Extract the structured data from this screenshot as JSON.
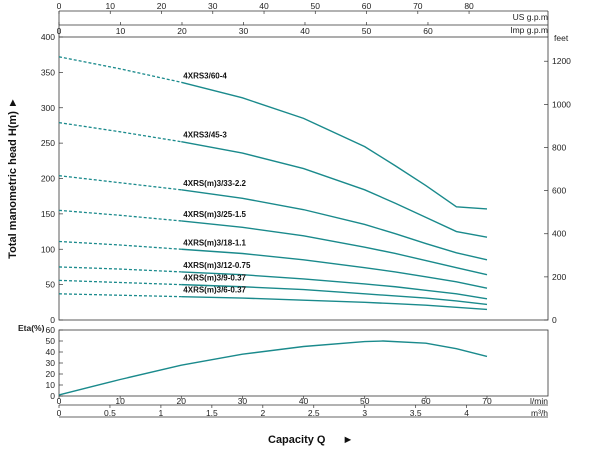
{
  "chart_data": [
    {
      "type": "line",
      "subtitle_panel": "head",
      "ylabel": "Total manometric head H(m)",
      "ylabel_arrow": "►",
      "ylim": [
        0,
        400
      ],
      "xlim": [
        0,
        70
      ],
      "y_ticks": [
        "0",
        "50",
        "100",
        "150",
        "200",
        "250",
        "300",
        "350",
        "400"
      ],
      "y2_label": "feet",
      "y2_ticks": [
        "0",
        "200",
        "400",
        "600",
        "800",
        "1000",
        "1200"
      ],
      "x_top1_label": "US g.p.m",
      "x_top1_ticks": [
        "0",
        "10",
        "20",
        "30",
        "40",
        "50",
        "60",
        "70",
        "80"
      ],
      "x_top2_label": "Imp g.p.m",
      "x_top2_ticks": [
        "0",
        "10",
        "20",
        "30",
        "40",
        "50",
        "60"
      ],
      "grid": false,
      "series": [
        {
          "name": "4XRS3/60-4",
          "x": [
            0,
            10,
            20,
            30,
            40,
            50,
            55,
            60,
            65,
            70
          ],
          "y": [
            372,
            355,
            336,
            314,
            285,
            245,
            218,
            190,
            160,
            157
          ]
        },
        {
          "name": "4XRS3/45-3",
          "x": [
            0,
            10,
            20,
            30,
            40,
            50,
            55,
            60,
            65,
            70
          ],
          "y": [
            279,
            266,
            252,
            236,
            214,
            184,
            165,
            145,
            125,
            117
          ]
        },
        {
          "name": "4XRS(m)3/33-2.2",
          "x": [
            0,
            10,
            20,
            30,
            40,
            50,
            55,
            60,
            65,
            70
          ],
          "y": [
            204,
            194,
            184,
            172,
            156,
            135,
            122,
            108,
            95,
            85
          ]
        },
        {
          "name": "4XRS(m)3/25-1.5",
          "x": [
            0,
            10,
            20,
            30,
            40,
            50,
            55,
            60,
            65,
            70
          ],
          "y": [
            155,
            148,
            140,
            131,
            119,
            103,
            94,
            84,
            74,
            64
          ]
        },
        {
          "name": "4XRS(m)3/18-1.1",
          "x": [
            0,
            10,
            20,
            30,
            40,
            50,
            55,
            60,
            65,
            70
          ],
          "y": [
            111,
            106,
            100,
            94,
            85,
            74,
            68,
            61,
            54,
            45
          ]
        },
        {
          "name": "4XRS(m)3/12-0.75",
          "x": [
            0,
            10,
            20,
            30,
            40,
            50,
            55,
            60,
            65,
            70
          ],
          "y": [
            75,
            72,
            68,
            64,
            58,
            51,
            47,
            42,
            37,
            30
          ]
        },
        {
          "name": "4XRS(m)3/9-0.37",
          "x": [
            0,
            10,
            20,
            30,
            40,
            50,
            55,
            60,
            65,
            70
          ],
          "y": [
            56,
            53,
            50,
            47,
            43,
            37,
            34,
            31,
            27,
            22
          ]
        },
        {
          "name": "4XRS(m)3/6-0.37",
          "x": [
            0,
            10,
            20,
            30,
            40,
            50,
            55,
            60,
            65,
            70
          ],
          "y": [
            37,
            35,
            33,
            31,
            28,
            25,
            23,
            21,
            18,
            15
          ]
        }
      ]
    },
    {
      "type": "line",
      "subtitle_panel": "efficiency",
      "ylabel": "Eta(%)",
      "ylim": [
        0,
        60
      ],
      "xlim": [
        0,
        70
      ],
      "y_ticks": [
        "0",
        "10",
        "20",
        "30",
        "40",
        "50",
        "60"
      ],
      "x_ticks": [
        "0",
        "10",
        "20",
        "30",
        "40",
        "50",
        "60",
        "70"
      ],
      "x_label": "l/min",
      "x2_ticks": [
        "0",
        "0.5",
        "1",
        "1.5",
        "2",
        "2.5",
        "3",
        "3.5",
        "4"
      ],
      "x2_label": "m³/h",
      "grid": false,
      "series": [
        {
          "name": "",
          "x": [
            0,
            5,
            10,
            20,
            30,
            40,
            50,
            53,
            60,
            65,
            70
          ],
          "y": [
            1,
            8,
            15,
            28,
            38,
            45,
            49.5,
            50,
            48,
            43,
            36
          ]
        }
      ]
    }
  ],
  "xlabel": "Capacity Q",
  "xlabel_arrow": "►",
  "colors": {
    "curve": "#1a8a8c",
    "axis": "#333333"
  }
}
